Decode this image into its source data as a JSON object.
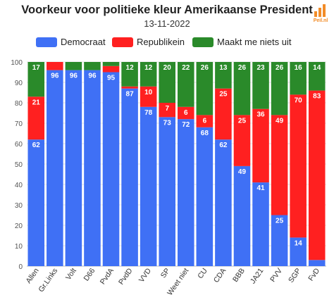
{
  "header": {
    "title": "Voorkeur voor politieke kleur Amerikaanse President",
    "subtitle": "13-11-2022",
    "logo_text": "Peil.nl",
    "logo_color": "#f28c28"
  },
  "legend": {
    "items": [
      {
        "label": "Democraat",
        "color": "#3f70f5"
      },
      {
        "label": "Republikein",
        "color": "#ff2020"
      },
      {
        "label": "Maakt me niets uit",
        "color": "#2a8a2a"
      }
    ]
  },
  "chart_data": {
    "type": "bar",
    "stacked": true,
    "title": "Voorkeur voor politieke kleur Amerikaanse President",
    "subtitle": "13-11-2022",
    "categories": [
      "Allen",
      "Gr.Links",
      "Volt",
      "D66",
      "PvdA",
      "PvdD",
      "VVD",
      "SP",
      "Weet niet",
      "CU",
      "CDA",
      "BBB",
      "JA21",
      "PVV",
      "SGP",
      "FvD"
    ],
    "series": [
      {
        "name": "Democraat",
        "color": "#3f70f5",
        "values": [
          62,
          96,
          96,
          96,
          95,
          87,
          78,
          73,
          72,
          68,
          62,
          49,
          41,
          25,
          14,
          3
        ]
      },
      {
        "name": "Republikein",
        "color": "#ff2020",
        "values": [
          21,
          4,
          0,
          0,
          3,
          1,
          10,
          7,
          6,
          6,
          25,
          25,
          36,
          49,
          70,
          83
        ]
      },
      {
        "name": "Maakt me niets uit",
        "color": "#2a8a2a",
        "values": [
          17,
          0,
          4,
          4,
          2,
          12,
          12,
          20,
          22,
          26,
          13,
          26,
          23,
          26,
          16,
          14
        ]
      }
    ],
    "labels": [
      [
        "62",
        "96",
        "96",
        "96",
        "95",
        "87",
        "78",
        "73",
        "72",
        "68",
        "62",
        "49",
        "41",
        "25",
        "14",
        ""
      ],
      [
        "21",
        "",
        "",
        "",
        "",
        "",
        "10",
        "7",
        "6",
        "6",
        "25",
        "25",
        "36",
        "49",
        "70",
        "83"
      ],
      [
        "17",
        "",
        "",
        "",
        "",
        "12",
        "12",
        "20",
        "22",
        "26",
        "13",
        "26",
        "23",
        "26",
        "16",
        "14"
      ]
    ],
    "ylim": [
      0,
      100
    ],
    "yticks": [
      0,
      10,
      20,
      30,
      40,
      50,
      60,
      70,
      80,
      90,
      100
    ],
    "grid": true,
    "legend_position": "top"
  }
}
